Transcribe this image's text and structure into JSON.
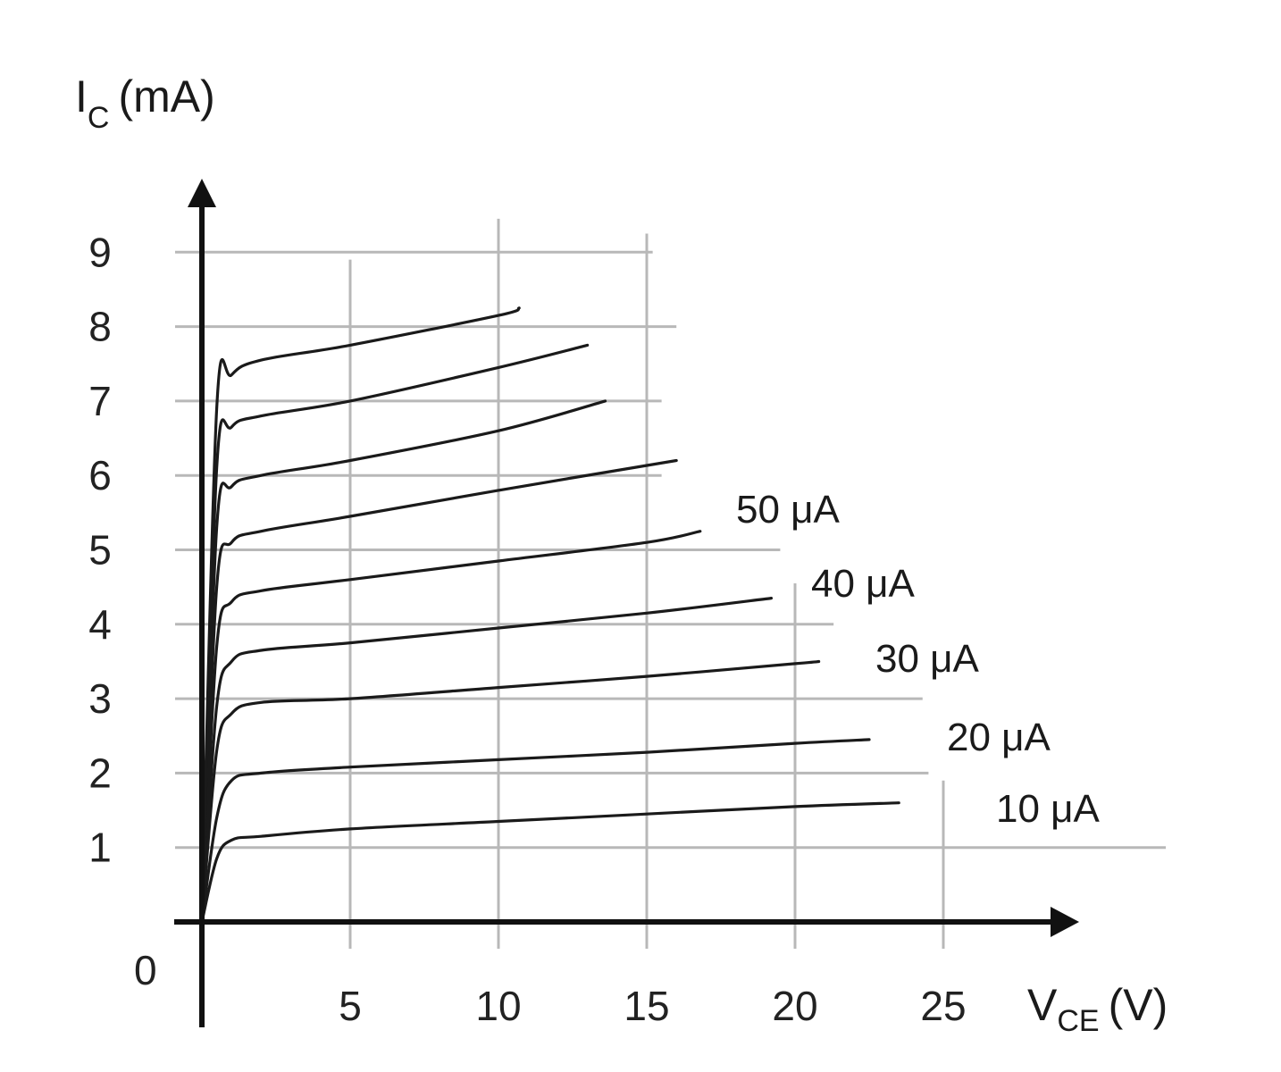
{
  "chart_data": {
    "type": "line",
    "title": "",
    "ylabel": {
      "main": "I",
      "sub": "C",
      "unit": "(mA)"
    },
    "xlabel": {
      "main": "V",
      "sub": "CE",
      "unit": "(V)"
    },
    "origin_label": "0",
    "xlim": [
      0,
      28
    ],
    "ylim": [
      0,
      9.8
    ],
    "x_ticks": [
      5,
      10,
      15,
      20,
      25
    ],
    "y_ticks": [
      1,
      2,
      3,
      4,
      5,
      6,
      7,
      8,
      9
    ],
    "grid": true,
    "series": [
      {
        "name": "10 μA",
        "x": [
          0,
          0.5,
          1,
          2,
          5,
          10,
          15,
          20,
          23.5
        ],
        "y": [
          0,
          0.85,
          1.1,
          1.15,
          1.25,
          1.35,
          1.45,
          1.55,
          1.6
        ]
      },
      {
        "name": "20 μA",
        "x": [
          0,
          0.5,
          1,
          2,
          5,
          10,
          15,
          20,
          22.5
        ],
        "y": [
          0,
          1.4,
          1.9,
          2.0,
          2.08,
          2.18,
          2.28,
          2.4,
          2.45
        ]
      },
      {
        "name": "30 μA",
        "x": [
          0,
          0.5,
          1,
          2,
          5,
          10,
          15,
          20,
          20.8
        ],
        "y": [
          0,
          2.3,
          2.8,
          2.95,
          3.0,
          3.15,
          3.3,
          3.47,
          3.5
        ]
      },
      {
        "name": "40 μA",
        "x": [
          0,
          0.5,
          1,
          2,
          5,
          10,
          15,
          19.2
        ],
        "y": [
          0,
          2.9,
          3.5,
          3.65,
          3.75,
          3.95,
          4.15,
          4.35
        ]
      },
      {
        "name": "50 μA",
        "x": [
          0,
          0.5,
          1,
          2,
          5,
          10,
          15,
          16.8
        ],
        "y": [
          0,
          3.7,
          4.3,
          4.45,
          4.6,
          4.85,
          5.1,
          5.25
        ]
      },
      {
        "name": "",
        "x": [
          0,
          0.5,
          1,
          2,
          5,
          10,
          16
        ],
        "y": [
          0,
          4.5,
          5.1,
          5.25,
          5.45,
          5.8,
          6.2
        ]
      },
      {
        "name": "",
        "x": [
          0,
          0.5,
          1,
          2,
          5,
          10,
          13.6
        ],
        "y": [
          0,
          5.3,
          5.85,
          6.0,
          6.2,
          6.6,
          7.0
        ]
      },
      {
        "name": "",
        "x": [
          0,
          0.5,
          1,
          2,
          5,
          10,
          13
        ],
        "y": [
          0,
          6.1,
          6.65,
          6.8,
          7.0,
          7.45,
          7.75
        ]
      },
      {
        "name": "",
        "x": [
          0,
          0.5,
          1,
          2,
          5,
          10,
          10.7
        ],
        "y": [
          0,
          6.9,
          7.35,
          7.55,
          7.75,
          8.15,
          8.25
        ]
      }
    ]
  }
}
